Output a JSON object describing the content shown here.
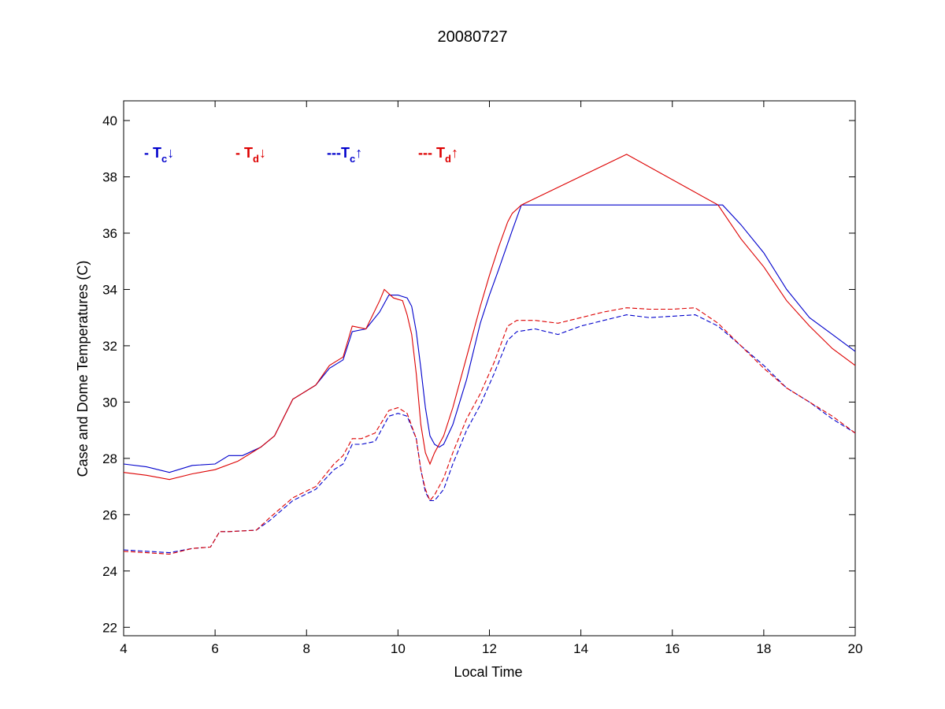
{
  "chart_data": {
    "type": "line",
    "title": "20080727",
    "xlabel": "Local Time",
    "ylabel": "Case and Dome Temperatures (C)",
    "xlim": [
      4,
      20
    ],
    "ylim": [
      21.7,
      40.7
    ],
    "xticks": [
      4,
      6,
      8,
      10,
      12,
      14,
      16,
      18,
      20
    ],
    "yticks": [
      22,
      24,
      26,
      28,
      30,
      32,
      34,
      36,
      38,
      40
    ],
    "grid": false,
    "legend_position": "top-left",
    "series": [
      {
        "name": "Tc down",
        "legend": {
          "prefix": "- T",
          "sub": "c",
          "arrow": "↓"
        },
        "color": "#0000cc",
        "dash": "solid",
        "x": [
          4.0,
          4.5,
          5.0,
          5.5,
          6.0,
          6.3,
          6.6,
          7.0,
          7.3,
          7.7,
          8.2,
          8.5,
          8.8,
          9.0,
          9.3,
          9.6,
          9.8,
          10.0,
          10.2,
          10.3,
          10.4,
          10.5,
          10.6,
          10.7,
          10.8,
          10.9,
          11.0,
          11.2,
          11.5,
          11.8,
          12.0,
          12.2,
          12.5,
          12.7,
          14.0,
          16.0,
          17.0,
          17.1,
          17.5,
          18.0,
          18.5,
          19.0,
          19.5,
          20.0
        ],
        "y": [
          27.8,
          27.7,
          27.5,
          27.75,
          27.8,
          28.1,
          28.1,
          28.4,
          28.8,
          30.1,
          30.6,
          31.2,
          31.5,
          32.5,
          32.6,
          33.2,
          33.8,
          33.8,
          33.7,
          33.4,
          32.5,
          31.2,
          29.8,
          28.8,
          28.5,
          28.4,
          28.5,
          29.2,
          30.8,
          32.8,
          33.8,
          34.7,
          36.1,
          37.0,
          37.0,
          37.0,
          37.0,
          37.0,
          36.3,
          35.3,
          34.0,
          33.0,
          32.4,
          31.8
        ]
      },
      {
        "name": "Td down",
        "legend": {
          "prefix": "- T",
          "sub": "d",
          "arrow": "↓"
        },
        "color": "#dd0000",
        "dash": "solid",
        "x": [
          4.0,
          4.5,
          5.0,
          5.5,
          6.0,
          6.5,
          7.0,
          7.3,
          7.7,
          8.2,
          8.5,
          8.8,
          9.0,
          9.3,
          9.6,
          9.7,
          9.9,
          10.1,
          10.2,
          10.3,
          10.4,
          10.5,
          10.6,
          10.7,
          10.8,
          11.0,
          11.2,
          11.5,
          11.8,
          12.0,
          12.2,
          12.4,
          12.5,
          12.7,
          15.0,
          17.0,
          17.5,
          18.0,
          18.5,
          19.0,
          19.5,
          20.0
        ],
        "y": [
          27.5,
          27.4,
          27.25,
          27.45,
          27.6,
          27.9,
          28.4,
          28.8,
          30.1,
          30.6,
          31.3,
          31.6,
          32.7,
          32.6,
          33.6,
          34.0,
          33.7,
          33.6,
          33.1,
          32.4,
          31.0,
          29.2,
          28.2,
          27.8,
          28.2,
          28.8,
          29.8,
          31.6,
          33.4,
          34.5,
          35.5,
          36.4,
          36.7,
          37.0,
          38.8,
          37.0,
          35.8,
          34.8,
          33.6,
          32.7,
          31.9,
          31.3
        ]
      },
      {
        "name": "Tc up",
        "legend": {
          "prefix": "---T",
          "sub": "c",
          "arrow": "↑"
        },
        "color": "#0000cc",
        "dash": "dashed",
        "x": [
          4.0,
          4.5,
          5.0,
          5.5,
          5.9,
          6.1,
          6.3,
          6.9,
          7.2,
          7.7,
          8.2,
          8.6,
          8.8,
          9.0,
          9.2,
          9.5,
          9.8,
          10.0,
          10.2,
          10.4,
          10.5,
          10.6,
          10.7,
          10.8,
          11.0,
          11.2,
          11.5,
          11.8,
          12.1,
          12.4,
          12.6,
          13.0,
          13.5,
          14.0,
          14.5,
          15.0,
          15.5,
          16.0,
          16.5,
          17.0,
          17.5,
          18.0,
          18.5,
          19.0,
          19.5,
          20.0
        ],
        "y": [
          24.75,
          24.7,
          24.65,
          24.8,
          24.85,
          25.4,
          25.4,
          25.45,
          25.8,
          26.5,
          26.9,
          27.6,
          27.8,
          28.5,
          28.5,
          28.6,
          29.5,
          29.6,
          29.5,
          28.7,
          27.6,
          26.8,
          26.5,
          26.5,
          26.9,
          27.8,
          29.0,
          29.9,
          31.0,
          32.2,
          32.5,
          32.6,
          32.4,
          32.7,
          32.9,
          33.1,
          33.0,
          33.05,
          33.1,
          32.7,
          32.0,
          31.3,
          30.5,
          30.0,
          29.4,
          28.9
        ]
      },
      {
        "name": "Td up",
        "legend": {
          "prefix": "--- T",
          "sub": "d",
          "arrow": "↑"
        },
        "color": "#dd0000",
        "dash": "dashed",
        "x": [
          4.0,
          4.5,
          5.0,
          5.5,
          5.9,
          6.1,
          6.3,
          6.9,
          7.2,
          7.7,
          8.2,
          8.6,
          8.8,
          9.0,
          9.2,
          9.5,
          9.8,
          10.0,
          10.2,
          10.4,
          10.5,
          10.6,
          10.7,
          10.8,
          11.0,
          11.2,
          11.5,
          11.8,
          12.1,
          12.4,
          12.6,
          13.0,
          13.5,
          14.0,
          14.5,
          15.0,
          15.5,
          16.0,
          16.5,
          17.0,
          17.5,
          18.0,
          18.5,
          19.0,
          19.5,
          20.0
        ],
        "y": [
          24.7,
          24.65,
          24.6,
          24.8,
          24.85,
          25.4,
          25.4,
          25.45,
          25.9,
          26.6,
          27.0,
          27.8,
          28.1,
          28.7,
          28.7,
          28.9,
          29.7,
          29.8,
          29.6,
          28.7,
          27.6,
          26.9,
          26.5,
          26.7,
          27.3,
          28.2,
          29.4,
          30.3,
          31.4,
          32.7,
          32.9,
          32.9,
          32.8,
          33.0,
          33.2,
          33.35,
          33.3,
          33.3,
          33.35,
          32.8,
          32.0,
          31.2,
          30.5,
          30.0,
          29.5,
          28.9
        ]
      }
    ]
  }
}
